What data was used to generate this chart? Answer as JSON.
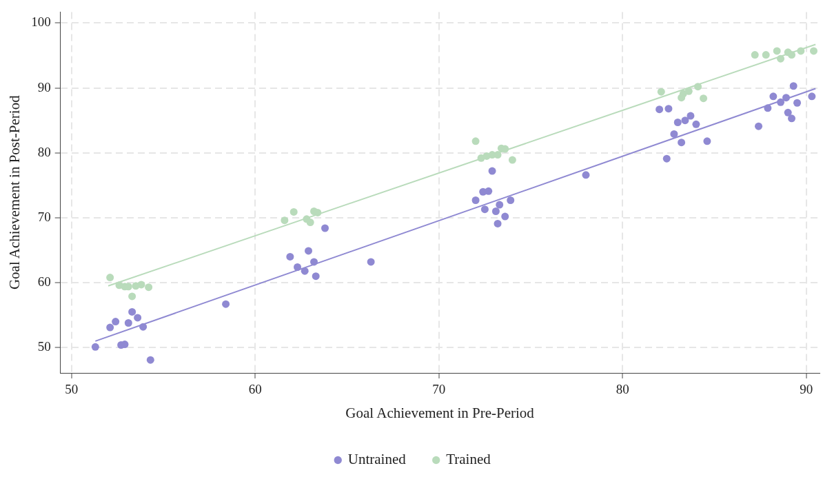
{
  "chart_data": {
    "type": "scatter",
    "xlabel": "Goal Achievement in Pre-Period",
    "ylabel": "Goal Achievement in Post-Period",
    "xlim": [
      49.4,
      90.7
    ],
    "ylim": [
      46.1,
      101.7
    ],
    "xticks": [
      50,
      60,
      70,
      80,
      90
    ],
    "yticks": [
      50,
      60,
      70,
      80,
      90,
      100
    ],
    "grid": true,
    "legend": "bottom",
    "series": [
      {
        "name": "Untrained",
        "color": "#8f89d2",
        "marker": "circle",
        "x": [
          51.3,
          52.1,
          52.4,
          52.7,
          52.9,
          53.1,
          53.3,
          53.6,
          53.9,
          54.3,
          58.4,
          61.9,
          62.3,
          62.7,
          62.9,
          63.2,
          63.3,
          63.8,
          66.3,
          72.0,
          72.4,
          72.7,
          72.5,
          72.9,
          73.1,
          73.2,
          73.3,
          73.6,
          73.9,
          78.0,
          82.0,
          82.5,
          82.4,
          82.8,
          83.0,
          83.2,
          83.4,
          83.7,
          84.0,
          84.6,
          87.4,
          87.9,
          88.2,
          88.6,
          88.9,
          89.0,
          89.2,
          89.3,
          89.5,
          90.3
        ],
        "values": [
          50.1,
          53.1,
          54.0,
          50.4,
          50.5,
          53.8,
          55.5,
          54.6,
          53.2,
          48.1,
          56.7,
          64.0,
          62.4,
          61.8,
          64.9,
          63.2,
          61.0,
          68.4,
          63.2,
          72.7,
          74.0,
          74.1,
          71.3,
          77.2,
          71.0,
          69.1,
          72.0,
          70.2,
          72.7,
          76.6,
          86.7,
          86.8,
          79.1,
          82.9,
          84.7,
          81.6,
          85.0,
          85.7,
          84.4,
          81.8,
          84.1,
          86.9,
          88.7,
          87.8,
          88.5,
          86.2,
          85.3,
          90.3,
          87.7,
          88.7
        ]
      },
      {
        "name": "Trained",
        "color": "#b9dbbb",
        "marker": "circle",
        "x": [
          52.1,
          52.6,
          52.9,
          53.1,
          53.3,
          53.5,
          53.8,
          54.2,
          61.6,
          62.1,
          62.8,
          63.0,
          63.2,
          63.4,
          72.0,
          72.3,
          72.6,
          72.9,
          73.2,
          73.4,
          73.6,
          74.0,
          82.1,
          83.2,
          83.3,
          83.6,
          84.1,
          84.4,
          87.2,
          87.8,
          88.4,
          88.6,
          88.9,
          89.0,
          89.2,
          89.7,
          90.4
        ],
        "values": [
          60.8,
          59.6,
          59.4,
          59.4,
          57.9,
          59.5,
          59.7,
          59.3,
          69.6,
          70.9,
          69.8,
          69.3,
          71.0,
          70.8,
          81.8,
          79.2,
          79.5,
          79.7,
          79.7,
          80.7,
          80.6,
          78.9,
          89.4,
          88.5,
          89.1,
          89.5,
          90.2,
          88.4,
          95.1,
          95.1,
          95.7,
          94.5,
          null,
          95.5,
          95.1,
          95.7,
          95.7
        ]
      },
      {
        "type": "line",
        "color": "#8f89d2",
        "marker": "none",
        "x": [
          51.3,
          90.5
        ],
        "values": [
          51.0,
          89.9
        ]
      },
      {
        "type": "line",
        "color": "#b9dbbb",
        "marker": "none",
        "x": [
          52.0,
          90.5
        ],
        "values": [
          59.5,
          96.7
        ]
      }
    ]
  }
}
